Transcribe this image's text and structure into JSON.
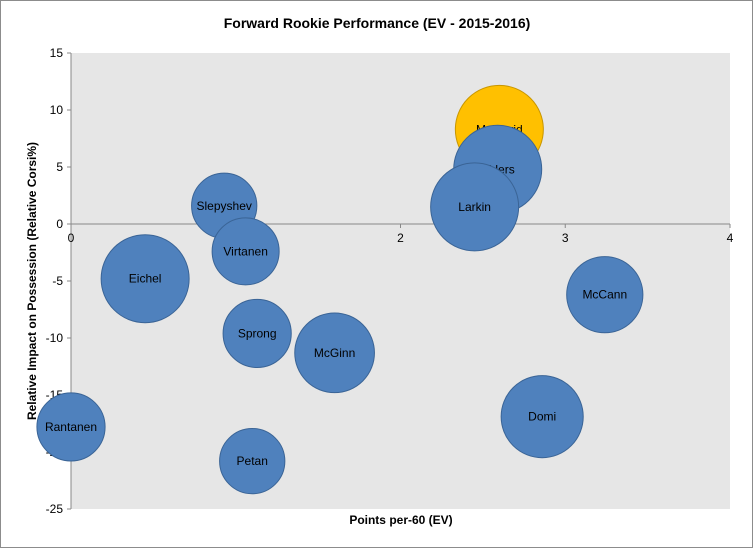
{
  "chart_data": {
    "type": "bubble",
    "title": "Forward  Rookie  Performance  (EV  - 2015-2016)",
    "xlabel": "Points per-60 (EV)",
    "ylabel": "Relative Impact on Possession (Relative Corsi%)",
    "xlim": [
      0,
      4
    ],
    "ylim": [
      -25,
      15
    ],
    "xticks": [
      "0",
      "1",
      "2",
      "3",
      "4"
    ],
    "yticks": [
      "15",
      "10",
      "5",
      "0",
      "-5",
      "-10",
      "-15",
      "-20",
      "-25"
    ],
    "grid": false,
    "colors": {
      "default": "#4f81bd",
      "highlight": "#ffc000",
      "plot_area": "#e6e6e6",
      "outline": "#3a6496",
      "highlight_outline": "#c89600"
    },
    "points": [
      {
        "name": "McDavid",
        "x": 2.6,
        "y": 8.3,
        "size": 1.0,
        "highlight": true
      },
      {
        "name": "Ehlers",
        "x": 2.59,
        "y": 4.8,
        "size": 1.0,
        "highlight": false
      },
      {
        "name": "Larkin",
        "x": 2.45,
        "y": 1.5,
        "size": 1.0,
        "highlight": false
      },
      {
        "name": "Slepyshev",
        "x": 0.93,
        "y": 1.6,
        "size": 0.55,
        "highlight": false
      },
      {
        "name": "Virtanen",
        "x": 1.06,
        "y": -2.4,
        "size": 0.58,
        "highlight": false
      },
      {
        "name": "Eichel",
        "x": 0.45,
        "y": -4.8,
        "size": 1.0,
        "highlight": false
      },
      {
        "name": "McCann",
        "x": 3.24,
        "y": -6.2,
        "size": 0.75,
        "highlight": false
      },
      {
        "name": "Sprong",
        "x": 1.13,
        "y": -9.6,
        "size": 0.6,
        "highlight": false
      },
      {
        "name": "McGinn",
        "x": 1.6,
        "y": -11.3,
        "size": 0.82,
        "highlight": false
      },
      {
        "name": "Domi",
        "x": 2.86,
        "y": -16.9,
        "size": 0.87,
        "highlight": false
      },
      {
        "name": "Rantanen",
        "x": 0.0,
        "y": -17.8,
        "size": 0.6,
        "highlight": false
      },
      {
        "name": "Petan",
        "x": 1.1,
        "y": -20.8,
        "size": 0.55,
        "highlight": false
      }
    ]
  }
}
